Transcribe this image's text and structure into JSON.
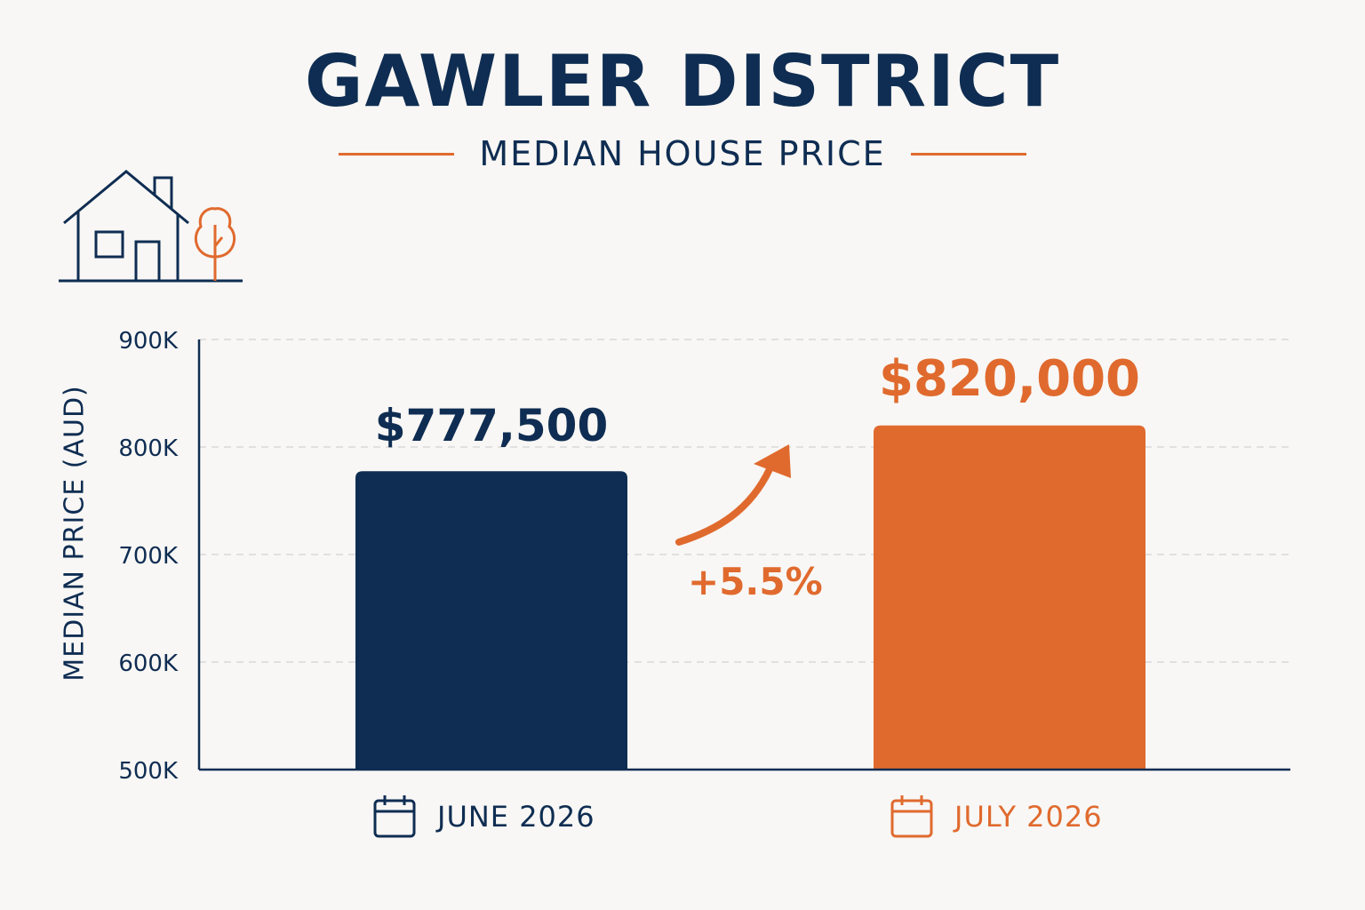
{
  "header": {
    "title": "GAWLER DISTRICT",
    "subtitle": "MEDIAN HOUSE PRICE"
  },
  "colors": {
    "navy": "#0f2d52",
    "orange": "#e06a2e",
    "background": "#f8f7f5",
    "grid": "#d9d9d9"
  },
  "icons": {
    "header_illustration": "house-with-tree-icon",
    "category_icon": "calendar-icon",
    "change_indicator": "arrow-up-right-icon"
  },
  "chart_data": {
    "type": "bar",
    "ylabel": "MEDIAN PRICE (AUD)",
    "xlabel": "",
    "ylim": [
      500000,
      900000
    ],
    "yticks": [
      500000,
      600000,
      700000,
      800000,
      900000
    ],
    "ytick_labels": [
      "500K",
      "600K",
      "700K",
      "800K",
      "900K"
    ],
    "grid": true,
    "categories": [
      "JUNE 2026",
      "JULY 2026"
    ],
    "values": [
      777500,
      820000
    ],
    "value_labels": [
      "$777,500",
      "$820,000"
    ],
    "bar_colors": [
      "#0f2d52",
      "#e06a2e"
    ],
    "annotation": "+5.5%"
  }
}
